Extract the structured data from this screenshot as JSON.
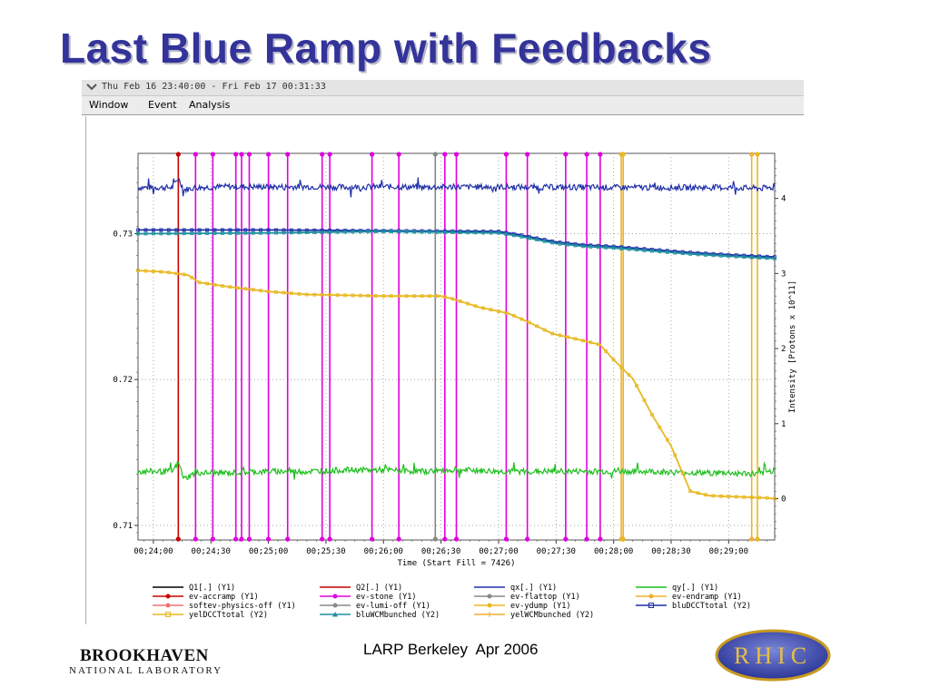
{
  "slide": {
    "title": "Last Blue Ramp with Feedbacks",
    "footer": "LARP Berkeley  Apr 2006",
    "logo_left_name": "BROOKHAVEN",
    "logo_left_sub": "NATIONAL LABORATORY",
    "logo_right_text": "RHIC"
  },
  "window": {
    "title": "Thu Feb 16 23:40:00 - Fri Feb 17 00:31:33",
    "menu": [
      "Window",
      "Event",
      "Analysis"
    ],
    "chevron_icon": "chevron-down-icon"
  },
  "colors": {
    "title": "#33339a",
    "blue_trace": "#1f2fa8",
    "green_trace": "#1fbf1f",
    "yellow_trace": "#e8b820",
    "magenta_event": "#e000e0",
    "red_event": "#c80000",
    "gray_event": "#888888",
    "orange_event": "#f0b030"
  },
  "chart_data": {
    "type": "line",
    "xlabel": "Time (Start Fill = 7426)",
    "ylabel_right": "Intensity [Protons x 10^11]",
    "x_unit": "seconds after 00:24:00",
    "xlim": [
      -8,
      324
    ],
    "y1lim": [
      0.709,
      0.7355
    ],
    "y2lim": [
      -0.55,
      4.6
    ],
    "x_ticks": [
      {
        "v": 0,
        "label": "00;24;00"
      },
      {
        "v": 30,
        "label": "00;24;30"
      },
      {
        "v": 60,
        "label": "00;25;00"
      },
      {
        "v": 90,
        "label": "00;25;30"
      },
      {
        "v": 120,
        "label": "00;26;00"
      },
      {
        "v": 150,
        "label": "00;26;30"
      },
      {
        "v": 180,
        "label": "00;27;00"
      },
      {
        "v": 210,
        "label": "00;27;30"
      },
      {
        "v": 240,
        "label": "00;28;00"
      },
      {
        "v": 270,
        "label": "00;28;30"
      },
      {
        "v": 300,
        "label": "00;29;00"
      }
    ],
    "y1_ticks": [
      {
        "v": 0.71,
        "label": "0.71"
      },
      {
        "v": 0.72,
        "label": "0.72"
      },
      {
        "v": 0.73,
        "label": "0.73"
      }
    ],
    "y2_ticks": [
      {
        "v": 0,
        "label": "0"
      },
      {
        "v": 1,
        "label": "1"
      },
      {
        "v": 2,
        "label": "2"
      },
      {
        "v": 3,
        "label": "3"
      },
      {
        "v": 4,
        "label": "4"
      }
    ],
    "events": [
      {
        "x": 13,
        "type": "ev-accramp",
        "color": "#c80000"
      },
      {
        "x": 22,
        "type": "ev-stone",
        "color": "#e000e0"
      },
      {
        "x": 31,
        "type": "ev-stone",
        "color": "#e000e0"
      },
      {
        "x": 43,
        "type": "ev-stone",
        "color": "#e000e0"
      },
      {
        "x": 46,
        "type": "ev-stone",
        "color": "#e000e0"
      },
      {
        "x": 50,
        "type": "ev-stone",
        "color": "#e000e0"
      },
      {
        "x": 60,
        "type": "ev-stone",
        "color": "#e000e0"
      },
      {
        "x": 70,
        "type": "ev-stone",
        "color": "#e000e0"
      },
      {
        "x": 88,
        "type": "ev-stone",
        "color": "#e000e0"
      },
      {
        "x": 92,
        "type": "ev-stone",
        "color": "#e000e0"
      },
      {
        "x": 114,
        "type": "ev-stone",
        "color": "#e000e0"
      },
      {
        "x": 128,
        "type": "ev-stone",
        "color": "#e000e0"
      },
      {
        "x": 147,
        "type": "ev-flattop",
        "color": "#888888"
      },
      {
        "x": 152,
        "type": "ev-stone",
        "color": "#e000e0"
      },
      {
        "x": 158,
        "type": "ev-stone",
        "color": "#e000e0"
      },
      {
        "x": 184,
        "type": "ev-stone",
        "color": "#e000e0"
      },
      {
        "x": 195,
        "type": "ev-stone",
        "color": "#e000e0"
      },
      {
        "x": 215,
        "type": "ev-stone",
        "color": "#e000e0"
      },
      {
        "x": 226,
        "type": "ev-stone",
        "color": "#e000e0"
      },
      {
        "x": 233,
        "type": "ev-stone",
        "color": "#e000e0"
      },
      {
        "x": 244,
        "type": "ev-endramp",
        "color": "#f0b030"
      },
      {
        "x": 245,
        "type": "ev-ydump",
        "color": "#e8b820"
      },
      {
        "x": 312,
        "type": "ev-endramp",
        "color": "#f0b030"
      },
      {
        "x": 315,
        "type": "ev-ydump",
        "color": "#e8b820"
      }
    ],
    "series": [
      {
        "name": "qx[.] (Y1)",
        "axis": "y1",
        "color": "#1f2fa8",
        "x": [
          -8,
          10,
          13,
          16,
          22,
          40,
          60,
          80,
          100,
          120,
          140,
          160,
          180,
          200,
          220,
          240,
          260,
          280,
          300,
          316,
          324
        ],
        "y": [
          0.73316,
          0.73316,
          0.7338,
          0.733,
          0.73316,
          0.73323,
          0.7332,
          0.73322,
          0.73318,
          0.73322,
          0.73318,
          0.7332,
          0.7332,
          0.73318,
          0.73318,
          0.73316,
          0.73316,
          0.73316,
          0.73316,
          0.7331,
          0.73316
        ],
        "noise": 0.0002
      },
      {
        "name": "qy[.] (Y1)",
        "axis": "y1",
        "color": "#1fbf1f",
        "x": [
          -8,
          10,
          13,
          16,
          22,
          40,
          60,
          80,
          100,
          120,
          140,
          160,
          180,
          200,
          220,
          240,
          260,
          280,
          300,
          316,
          324
        ],
        "y": [
          0.7137,
          0.7137,
          0.7143,
          0.7132,
          0.7136,
          0.7136,
          0.7137,
          0.7137,
          0.7138,
          0.7138,
          0.7137,
          0.7138,
          0.7137,
          0.7137,
          0.7137,
          0.7137,
          0.7137,
          0.7136,
          0.7136,
          0.7135,
          0.7138
        ],
        "noise": 0.0002
      },
      {
        "name": "bluDCCTtotal (Y2)",
        "axis": "y2",
        "color": "#1f2fa8",
        "x": [
          -8,
          60,
          120,
          180,
          190,
          200,
          210,
          225,
          240,
          260,
          280,
          300,
          324
        ],
        "y": [
          3.58,
          3.58,
          3.57,
          3.56,
          3.52,
          3.47,
          3.42,
          3.38,
          3.36,
          3.32,
          3.28,
          3.25,
          3.22
        ]
      },
      {
        "name": "bluWCMbunched (Y2)",
        "axis": "y2",
        "color": "#1f8fa0",
        "x": [
          -8,
          60,
          120,
          180,
          190,
          200,
          210,
          225,
          240,
          260,
          280,
          300,
          324
        ],
        "y": [
          3.53,
          3.54,
          3.56,
          3.54,
          3.5,
          3.45,
          3.4,
          3.36,
          3.34,
          3.3,
          3.26,
          3.23,
          3.2
        ]
      },
      {
        "name": "yelDCCTtotal (Y2)",
        "axis": "y2",
        "color": "#e8b820",
        "x": [
          -8,
          6,
          18,
          24,
          40,
          60,
          80,
          100,
          120,
          140,
          150,
          155,
          170,
          185,
          195,
          208,
          225,
          233,
          240,
          250,
          260,
          270,
          280,
          290,
          300,
          320,
          324
        ],
        "y": [
          3.04,
          3.02,
          2.98,
          2.88,
          2.82,
          2.76,
          2.72,
          2.71,
          2.7,
          2.7,
          2.7,
          2.67,
          2.55,
          2.47,
          2.36,
          2.2,
          2.1,
          2.05,
          1.85,
          1.6,
          1.12,
          0.7,
          0.1,
          0.04,
          0.03,
          0.01,
          0.0
        ]
      }
    ],
    "legend": [
      {
        "label": "Q1[.] (Y1)",
        "color": "#000000",
        "marker": "none",
        "col": 0,
        "row": 0
      },
      {
        "label": "ev-accramp (Y1)",
        "color": "#c80000",
        "marker": "dot",
        "col": 0,
        "row": 1
      },
      {
        "label": "softev-physics-off (Y1)",
        "color": "#f07070",
        "marker": "dot",
        "col": 0,
        "row": 2
      },
      {
        "label": "yelDCCTtotal (Y2)",
        "color": "#e8b820",
        "marker": "square",
        "col": 0,
        "row": 3
      },
      {
        "label": "Q2[.] (Y1)",
        "color": "#c80000",
        "marker": "none",
        "col": 1,
        "row": 0
      },
      {
        "label": "ev-stone (Y1)",
        "color": "#e000e0",
        "marker": "dot",
        "col": 1,
        "row": 1
      },
      {
        "label": "ev-lumi-off (Y1)",
        "color": "#888888",
        "marker": "dot",
        "col": 1,
        "row": 2
      },
      {
        "label": "bluWCMbunched (Y2)",
        "color": "#1f8fa0",
        "marker": "triangle",
        "col": 1,
        "row": 3
      },
      {
        "label": "qx[.] (Y1)",
        "color": "#1f2fa8",
        "marker": "none",
        "col": 2,
        "row": 0
      },
      {
        "label": "ev-flattop (Y1)",
        "color": "#888888",
        "marker": "dot",
        "col": 2,
        "row": 1
      },
      {
        "label": "ev-ydump (Y1)",
        "color": "#e8b820",
        "marker": "dot",
        "col": 2,
        "row": 2
      },
      {
        "label": "yelWCMbunched (Y2)",
        "color": "#f0b030",
        "marker": "plus",
        "col": 2,
        "row": 3
      },
      {
        "label": "qy[.] (Y1)",
        "color": "#1fbf1f",
        "marker": "none",
        "col": 3,
        "row": 0
      },
      {
        "label": "ev-endramp (Y1)",
        "color": "#f0b030",
        "marker": "dot",
        "col": 3,
        "row": 1
      },
      {
        "label": "bluDCCTtotal (Y2)",
        "color": "#1f2fa8",
        "marker": "square",
        "col": 3,
        "row": 2
      }
    ]
  }
}
